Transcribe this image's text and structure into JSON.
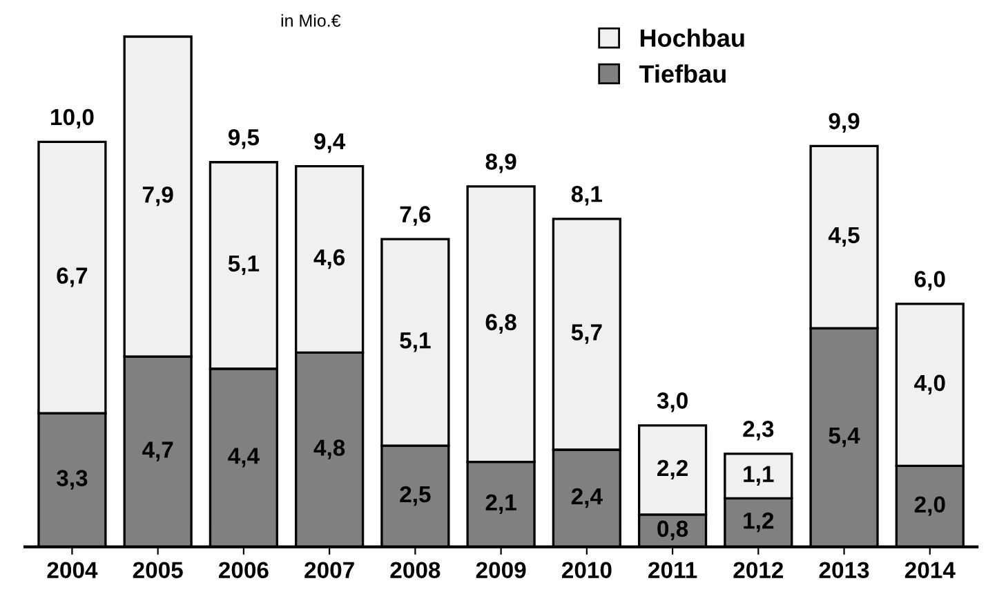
{
  "chart_data": {
    "type": "bar",
    "stacked": true,
    "categories": [
      "2004",
      "2005",
      "2006",
      "2007",
      "2008",
      "2009",
      "2010",
      "2011",
      "2012",
      "2013",
      "2014"
    ],
    "series": [
      {
        "name": "Tiefbau",
        "color": "#808080",
        "values": [
          3.3,
          4.7,
          4.4,
          4.8,
          2.5,
          2.1,
          2.4,
          0.8,
          1.2,
          5.4,
          2.0
        ],
        "value_labels": [
          "3,3",
          "4,7",
          "4,4",
          "4,8",
          "2,5",
          "2,1",
          "2,4",
          "0,8",
          "1,2",
          "5,4",
          "2,0"
        ]
      },
      {
        "name": "Hochbau",
        "color": "#f0f0f0",
        "values": [
          6.7,
          7.9,
          5.1,
          4.6,
          5.1,
          6.8,
          5.7,
          2.2,
          1.1,
          4.5,
          4.0
        ],
        "value_labels": [
          "6,7",
          "7,9",
          "5,1",
          "4,6",
          "5,1",
          "6,8",
          "5,7",
          "2,2",
          "1,1",
          "4,5",
          "4,0"
        ]
      }
    ],
    "totals": [
      "10,0",
      null,
      "9,5",
      "9,4",
      "7,6",
      "8,9",
      "8,1",
      "3,0",
      "2,3",
      "9,9",
      "6,0"
    ],
    "annotations": [
      "in Mio.€"
    ],
    "legend": "top"
  }
}
